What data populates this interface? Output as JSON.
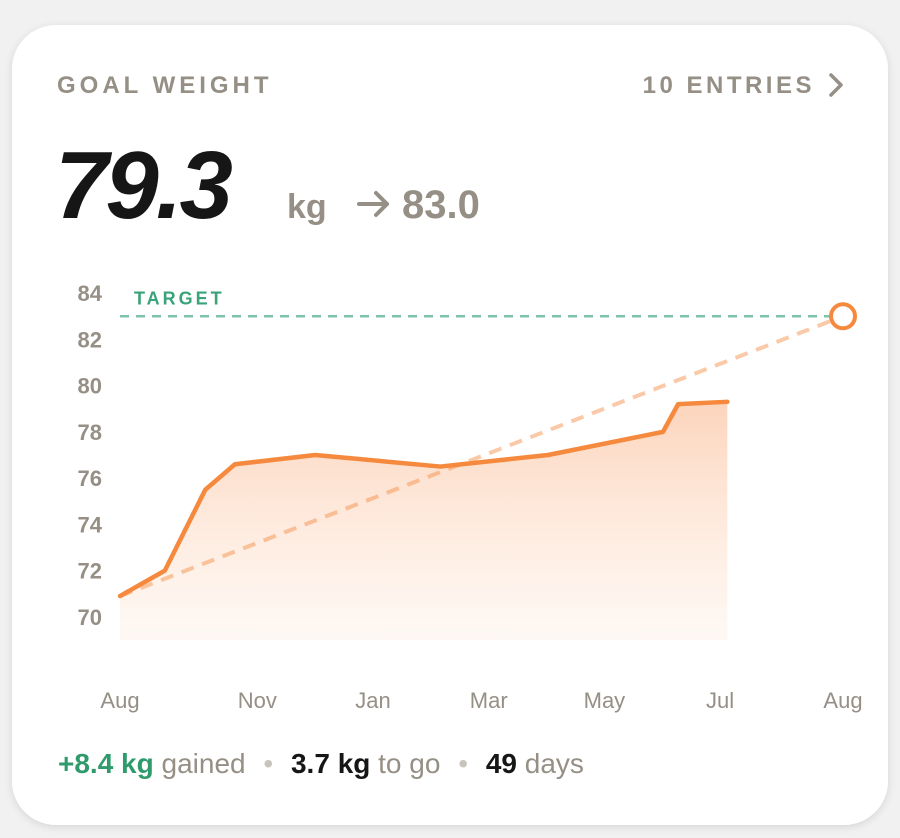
{
  "header": {
    "title": "GOAL WEIGHT",
    "entries": "10 ENTRIES",
    "current": "79.3",
    "unit": "kg",
    "goal": "83.0"
  },
  "chart_data": {
    "type": "line",
    "color": "#f5893d",
    "x": [
      0,
      6.2,
      11.8,
      15.9,
      27.0,
      44.3,
      59.2,
      75.1,
      77.2,
      84.0
    ],
    "values": [
      70.9,
      72.0,
      75.5,
      76.6,
      77.0,
      76.5,
      77.0,
      78.0,
      79.2,
      79.3
    ],
    "target": {
      "label": "TARGET",
      "value": 83.0,
      "x": 100,
      "color": "#3aa37a"
    },
    "xlim": [
      0,
      100
    ],
    "xticks": [
      {
        "value": 0,
        "label": "Aug"
      },
      {
        "value": 19,
        "label": "Nov"
      },
      {
        "value": 35,
        "label": "Jan"
      },
      {
        "value": 51,
        "label": "Mar"
      },
      {
        "value": 67,
        "label": "May"
      },
      {
        "value": 83,
        "label": "Jul"
      },
      {
        "value": 100,
        "label": "Aug"
      }
    ],
    "ylim": [
      69,
      85
    ],
    "yticks": [
      70,
      72,
      74,
      76,
      78,
      80,
      82,
      84
    ]
  },
  "footer": {
    "gained": "+8.4 kg",
    "gained_text": "gained",
    "to_go": "3.7 kg",
    "to_go_text": "to go",
    "days": "49",
    "days_text": "days"
  }
}
